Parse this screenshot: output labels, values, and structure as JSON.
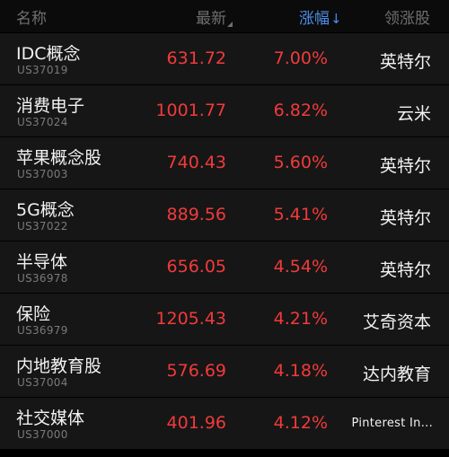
{
  "header": {
    "name": "名称",
    "last": "最新",
    "change": "涨幅",
    "change_arrow": "↓",
    "leader": "领涨股"
  },
  "colors": {
    "up": "#f23a3a",
    "active_sort": "#4b8ee8",
    "background": "#000000",
    "row_background": "#161616"
  },
  "rows": [
    {
      "name": "IDC概念",
      "code": "US37019",
      "price": "631.72",
      "change": "7.00%",
      "leader": "英特尔"
    },
    {
      "name": "消费电子",
      "code": "US37024",
      "price": "1001.77",
      "change": "6.82%",
      "leader": "云米"
    },
    {
      "name": "苹果概念股",
      "code": "US37003",
      "price": "740.43",
      "change": "5.60%",
      "leader": "英特尔"
    },
    {
      "name": "5G概念",
      "code": "US37022",
      "price": "889.56",
      "change": "5.41%",
      "leader": "英特尔"
    },
    {
      "name": "半导体",
      "code": "US36978",
      "price": "656.05",
      "change": "4.54%",
      "leader": "英特尔"
    },
    {
      "name": "保险",
      "code": "US36979",
      "price": "1205.43",
      "change": "4.21%",
      "leader": "艾奇资本"
    },
    {
      "name": "内地教育股",
      "code": "US37004",
      "price": "576.69",
      "change": "4.18%",
      "leader": "达内教育"
    },
    {
      "name": "社交媒体",
      "code": "US37000",
      "price": "401.96",
      "change": "4.12%",
      "leader": "Pinterest In..."
    }
  ]
}
